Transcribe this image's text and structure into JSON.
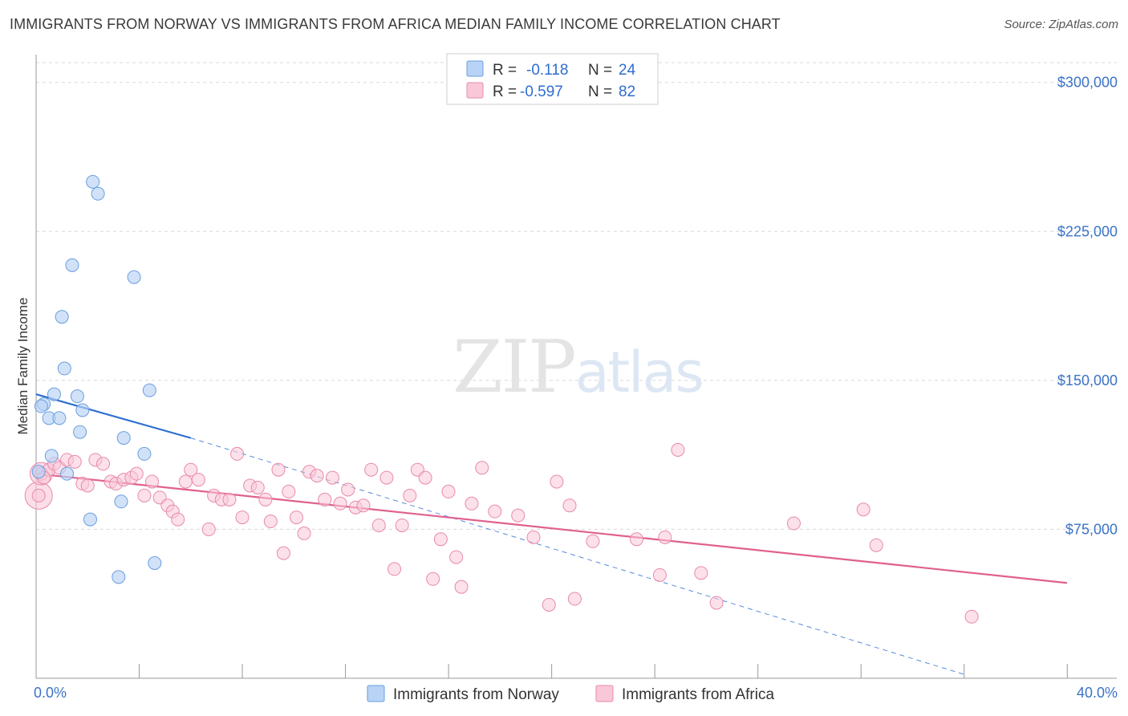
{
  "title": "IMMIGRANTS FROM NORWAY VS IMMIGRANTS FROM AFRICA MEDIAN FAMILY INCOME CORRELATION CHART",
  "source": "Source: ZipAtlas.com",
  "watermark": {
    "zip": "ZIP",
    "atlas": "atlas"
  },
  "legend": {
    "r_label": "R =",
    "n_label": "N =",
    "norway": {
      "r": "-0.118",
      "n": "24"
    },
    "africa": {
      "r": "-0.597",
      "n": "82"
    }
  },
  "bottom_legend": {
    "norway": "Immigrants from Norway",
    "africa": "Immigrants from Africa"
  },
  "colors": {
    "norway_fill": "#b8d3f5",
    "norway_stroke": "#6a9ee0",
    "norway_line": "#2e6fd0",
    "africa_fill": "#f9c8d8",
    "africa_stroke": "#e88aa8",
    "africa_line": "#e0608f",
    "grid": "#d8d8d8",
    "tick_label": "#3b73c8"
  },
  "chart_data": {
    "type": "scatter",
    "title": "IMMIGRANTS FROM NORWAY VS IMMIGRANTS FROM AFRICA MEDIAN FAMILY INCOME CORRELATION CHART",
    "xlabel": "",
    "ylabel": "Median Family Income",
    "xlim": [
      0,
      40
    ],
    "ylim": [
      0,
      310000
    ],
    "x_tick_labels": [
      "0.0%",
      "40.0%"
    ],
    "y_ticks": [
      75000,
      150000,
      225000,
      300000
    ],
    "y_tick_labels": [
      "$75,000",
      "$150,000",
      "$225,000",
      "$300,000"
    ],
    "grid": true,
    "series": [
      {
        "name": "Immigrants from Norway",
        "points": [
          [
            0.1,
            104000
          ],
          [
            0.3,
            138000
          ],
          [
            0.5,
            131000
          ],
          [
            0.6,
            112000
          ],
          [
            0.7,
            143000
          ],
          [
            0.9,
            131000
          ],
          [
            1.0,
            182000
          ],
          [
            1.1,
            156000
          ],
          [
            1.2,
            103000
          ],
          [
            1.4,
            208000
          ],
          [
            1.6,
            142000
          ],
          [
            1.7,
            124000
          ],
          [
            1.8,
            135000
          ],
          [
            2.1,
            80000
          ],
          [
            2.2,
            250000
          ],
          [
            2.4,
            244000
          ],
          [
            3.2,
            51000
          ],
          [
            3.3,
            89000
          ],
          [
            3.4,
            121000
          ],
          [
            3.8,
            202000
          ],
          [
            4.2,
            113000
          ],
          [
            4.4,
            145000
          ],
          [
            4.6,
            58000
          ],
          [
            0.2,
            137000
          ]
        ],
        "trend": {
          "x0": 0,
          "y0": 143000,
          "x1": 6.0,
          "y1": 121000,
          "dashed_to_x": 36.0,
          "dashed_to_y": 2000
        }
      },
      {
        "name": "Immigrants from Africa",
        "points": [
          [
            0.1,
            92000
          ],
          [
            0.2,
            103000
          ],
          [
            0.5,
            105000
          ],
          [
            0.7,
            108000
          ],
          [
            0.9,
            106000
          ],
          [
            1.2,
            110000
          ],
          [
            1.5,
            109000
          ],
          [
            1.8,
            98000
          ],
          [
            2.0,
            97000
          ],
          [
            2.3,
            110000
          ],
          [
            2.6,
            108000
          ],
          [
            2.9,
            99000
          ],
          [
            3.1,
            98000
          ],
          [
            3.4,
            100000
          ],
          [
            3.7,
            101000
          ],
          [
            3.9,
            103000
          ],
          [
            4.2,
            92000
          ],
          [
            4.5,
            99000
          ],
          [
            4.8,
            91000
          ],
          [
            5.1,
            87000
          ],
          [
            5.3,
            84000
          ],
          [
            5.5,
            80000
          ],
          [
            5.8,
            99000
          ],
          [
            6.0,
            105000
          ],
          [
            6.3,
            100000
          ],
          [
            6.7,
            75000
          ],
          [
            6.9,
            92000
          ],
          [
            7.2,
            90000
          ],
          [
            7.5,
            90000
          ],
          [
            7.8,
            113000
          ],
          [
            8.0,
            81000
          ],
          [
            8.3,
            97000
          ],
          [
            8.6,
            96000
          ],
          [
            8.9,
            90000
          ],
          [
            9.1,
            79000
          ],
          [
            9.4,
            105000
          ],
          [
            9.6,
            63000
          ],
          [
            9.8,
            94000
          ],
          [
            10.1,
            81000
          ],
          [
            10.4,
            73000
          ],
          [
            10.6,
            104000
          ],
          [
            10.9,
            102000
          ],
          [
            11.2,
            90000
          ],
          [
            11.5,
            101000
          ],
          [
            11.8,
            88000
          ],
          [
            12.1,
            95000
          ],
          [
            12.4,
            86000
          ],
          [
            12.7,
            87000
          ],
          [
            13.0,
            105000
          ],
          [
            13.3,
            77000
          ],
          [
            13.6,
            101000
          ],
          [
            13.9,
            55000
          ],
          [
            14.2,
            77000
          ],
          [
            14.5,
            92000
          ],
          [
            14.8,
            105000
          ],
          [
            15.1,
            101000
          ],
          [
            15.4,
            50000
          ],
          [
            15.7,
            70000
          ],
          [
            16.0,
            94000
          ],
          [
            16.3,
            61000
          ],
          [
            16.5,
            46000
          ],
          [
            16.9,
            88000
          ],
          [
            17.3,
            106000
          ],
          [
            17.8,
            84000
          ],
          [
            18.7,
            82000
          ],
          [
            19.3,
            71000
          ],
          [
            19.9,
            37000
          ],
          [
            20.2,
            99000
          ],
          [
            20.7,
            87000
          ],
          [
            20.9,
            40000
          ],
          [
            21.6,
            69000
          ],
          [
            23.3,
            70000
          ],
          [
            24.2,
            52000
          ],
          [
            24.4,
            71000
          ],
          [
            24.9,
            115000
          ],
          [
            25.8,
            53000
          ],
          [
            26.4,
            38000
          ],
          [
            29.4,
            78000
          ],
          [
            32.1,
            85000
          ],
          [
            32.6,
            67000
          ],
          [
            36.3,
            31000
          ],
          [
            0.3,
            101000
          ]
        ],
        "trend": {
          "x0": 0,
          "y0": 103000,
          "x1": 40,
          "y1": 48000
        }
      }
    ]
  }
}
